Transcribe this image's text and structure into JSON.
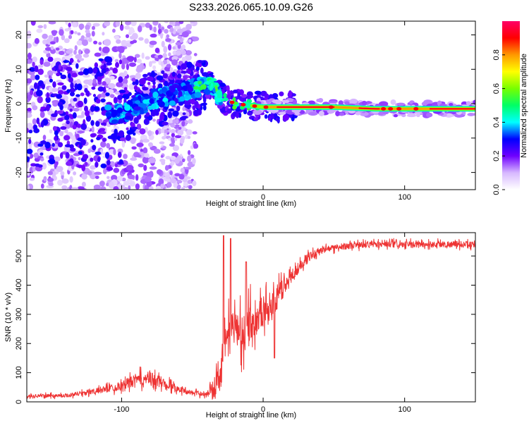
{
  "title": "S233.2026.065.10.09.G26",
  "chart_data": [
    {
      "type": "heatmap",
      "xlabel": "Height of straight line (km)",
      "ylabel": "Frequency (Hz)",
      "xlim": [
        -167,
        150
      ],
      "ylim": [
        -25,
        24
      ],
      "xticks": [
        -100,
        0,
        100
      ],
      "xtick_labels": [
        "-100",
        "0",
        "100"
      ],
      "yticks": [
        -20,
        -10,
        0,
        10,
        20
      ],
      "ytick_labels": [
        "-20",
        "-10",
        "0",
        "10",
        "20"
      ],
      "ridge": {
        "x": [
          -100,
          -80,
          -60,
          -45,
          -38,
          -30,
          -20,
          -10,
          0,
          20,
          50,
          80,
          100,
          120,
          150
        ],
        "freq": [
          -3,
          1,
          3,
          5,
          6,
          2,
          0,
          -0.5,
          -1,
          -1,
          -1,
          -1.5,
          -1.5,
          -1.5,
          -1.5
        ]
      },
      "colorbar": {
        "label": "Normalized spectral amplitude",
        "range": [
          0,
          1
        ],
        "ticks": [
          0,
          0.2,
          0.4,
          0.6,
          0.8
        ],
        "tick_labels": [
          "0.0",
          "0.2",
          "0.4",
          "0.6",
          "0.8"
        ],
        "stops": [
          "#ffffff",
          "#d7b8ff",
          "#6f00ff",
          "#0000ff",
          "#00ffff",
          "#00ff66",
          "#77ff00",
          "#ffff00",
          "#ff9900",
          "#ff0000",
          "#ff0066"
        ]
      }
    },
    {
      "type": "line",
      "xlabel": "Height of straight line (km)",
      "ylabel": "SNR (10 * v/v)",
      "xlim": [
        -167,
        150
      ],
      "ylim": [
        0,
        580
      ],
      "xticks": [
        -100,
        0,
        100
      ],
      "xtick_labels": [
        "-100",
        "0",
        "100"
      ],
      "yticks": [
        0,
        100,
        200,
        300,
        400,
        500
      ],
      "ytick_labels": [
        "0",
        "100",
        "200",
        "300",
        "400",
        "500"
      ],
      "color": "#ee3333",
      "series": [
        {
          "name": "SNR",
          "x": [
            -167,
            -140,
            -120,
            -100,
            -90,
            -80,
            -70,
            -60,
            -50,
            -40,
            -35,
            -30,
            -25,
            -20,
            -15,
            -10,
            -5,
            0,
            5,
            10,
            20,
            30,
            40,
            60,
            80,
            100,
            120,
            150
          ],
          "values": [
            20,
            22,
            35,
            55,
            75,
            80,
            65,
            45,
            30,
            28,
            50,
            130,
            220,
            260,
            240,
            270,
            300,
            310,
            330,
            360,
            430,
            490,
            520,
            535,
            540,
            538,
            540,
            540
          ],
          "noise_amplitude": [
            8,
            10,
            15,
            25,
            35,
            40,
            30,
            18,
            12,
            15,
            40,
            80,
            110,
            120,
            120,
            110,
            100,
            90,
            80,
            70,
            40,
            25,
            18,
            18,
            18,
            18,
            18,
            18
          ],
          "peaks": [
            {
              "x": -28,
              "value": 570
            },
            {
              "x": -23,
              "value": 560
            },
            {
              "x": -12,
              "value": 480
            },
            {
              "x": 8,
              "value": 150
            }
          ]
        }
      ]
    }
  ]
}
